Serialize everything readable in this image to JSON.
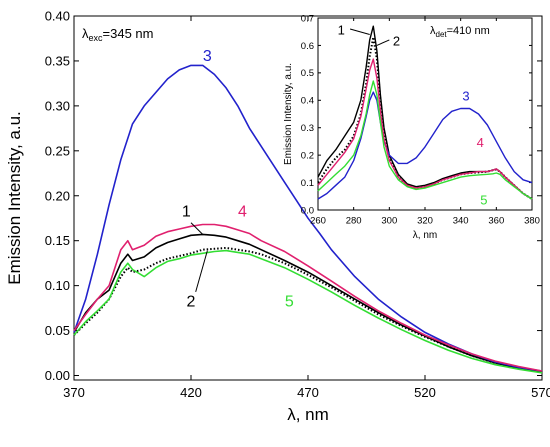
{
  "chart_data": [
    {
      "type": "line",
      "role": "main",
      "annotation": {
        "symbol": "λ",
        "sub": "exc",
        "value": "=345 nm"
      },
      "xlabel": "λ, nm",
      "ylabel": "Emission Intensity, a.u.",
      "xlim": [
        370,
        570
      ],
      "ylim": [
        -0.005,
        0.4
      ],
      "x_ticks": [
        370,
        420,
        470,
        520,
        570
      ],
      "y_ticks": [
        0.0,
        0.05,
        0.1,
        0.15,
        0.2,
        0.25,
        0.3,
        0.35,
        0.4
      ],
      "grid": false,
      "series": [
        {
          "name": "1",
          "color": "#000000",
          "style": "solid",
          "x": [
            370,
            375,
            380,
            385,
            390,
            393,
            395,
            400,
            405,
            410,
            415,
            420,
            425,
            430,
            435,
            440,
            445,
            450,
            460,
            470,
            480,
            490,
            500,
            510,
            520,
            530,
            540,
            550,
            560,
            570
          ],
          "y": [
            0.048,
            0.07,
            0.085,
            0.095,
            0.125,
            0.135,
            0.128,
            0.132,
            0.142,
            0.148,
            0.152,
            0.156,
            0.157,
            0.156,
            0.154,
            0.15,
            0.146,
            0.14,
            0.128,
            0.115,
            0.1,
            0.085,
            0.07,
            0.056,
            0.044,
            0.032,
            0.022,
            0.014,
            0.008,
            0.004
          ]
        },
        {
          "name": "2",
          "color": "#000000",
          "style": "dotted",
          "x": [
            370,
            375,
            380,
            385,
            390,
            393,
            395,
            400,
            405,
            410,
            415,
            420,
            425,
            430,
            435,
            440,
            445,
            450,
            460,
            470,
            480,
            490,
            500,
            510,
            520,
            530,
            540,
            550,
            560,
            570
          ],
          "y": [
            0.045,
            0.058,
            0.07,
            0.085,
            0.11,
            0.12,
            0.115,
            0.118,
            0.125,
            0.13,
            0.133,
            0.136,
            0.14,
            0.141,
            0.142,
            0.14,
            0.138,
            0.135,
            0.125,
            0.112,
            0.098,
            0.083,
            0.068,
            0.055,
            0.043,
            0.032,
            0.022,
            0.014,
            0.008,
            0.004
          ]
        },
        {
          "name": "3",
          "color": "#2222cc",
          "style": "solid",
          "x": [
            370,
            375,
            380,
            385,
            390,
            395,
            400,
            405,
            410,
            415,
            420,
            425,
            430,
            435,
            440,
            445,
            450,
            455,
            460,
            465,
            470,
            475,
            480,
            490,
            500,
            510,
            520,
            530,
            540,
            550,
            560,
            570
          ],
          "y": [
            0.048,
            0.085,
            0.135,
            0.19,
            0.24,
            0.28,
            0.3,
            0.315,
            0.33,
            0.34,
            0.345,
            0.345,
            0.335,
            0.32,
            0.3,
            0.275,
            0.255,
            0.235,
            0.215,
            0.195,
            0.175,
            0.158,
            0.14,
            0.11,
            0.085,
            0.065,
            0.048,
            0.035,
            0.024,
            0.015,
            0.009,
            0.005
          ]
        },
        {
          "name": "4",
          "color": "#e0206e",
          "style": "solid",
          "x": [
            370,
            375,
            380,
            385,
            390,
            393,
            395,
            400,
            405,
            410,
            415,
            420,
            425,
            430,
            435,
            440,
            445,
            450,
            460,
            470,
            480,
            490,
            500,
            510,
            520,
            530,
            540,
            550,
            560,
            570
          ],
          "y": [
            0.05,
            0.068,
            0.085,
            0.1,
            0.14,
            0.15,
            0.14,
            0.145,
            0.155,
            0.16,
            0.163,
            0.166,
            0.168,
            0.168,
            0.166,
            0.162,
            0.158,
            0.15,
            0.138,
            0.122,
            0.105,
            0.088,
            0.072,
            0.058,
            0.045,
            0.034,
            0.024,
            0.016,
            0.01,
            0.005
          ]
        },
        {
          "name": "5",
          "color": "#33dd33",
          "style": "solid",
          "x": [
            370,
            375,
            380,
            385,
            390,
            393,
            395,
            400,
            405,
            410,
            415,
            420,
            425,
            430,
            435,
            440,
            445,
            450,
            460,
            470,
            480,
            490,
            500,
            510,
            520,
            530,
            540,
            550,
            560,
            570
          ],
          "y": [
            0.045,
            0.06,
            0.072,
            0.085,
            0.115,
            0.125,
            0.118,
            0.11,
            0.12,
            0.127,
            0.13,
            0.134,
            0.136,
            0.138,
            0.139,
            0.137,
            0.135,
            0.13,
            0.12,
            0.107,
            0.093,
            0.078,
            0.064,
            0.051,
            0.039,
            0.028,
            0.019,
            0.012,
            0.007,
            0.003
          ]
        }
      ],
      "curve_labels": [
        {
          "text": "1",
          "x": 418,
          "y": 0.177,
          "color": "#000000"
        },
        {
          "text": "2",
          "x": 420,
          "y": 0.077,
          "color": "#000000"
        },
        {
          "text": "3",
          "x": 427,
          "y": 0.35,
          "color": "#2222cc"
        },
        {
          "text": "4",
          "x": 442,
          "y": 0.177,
          "color": "#e0206e"
        },
        {
          "text": "5",
          "x": 462,
          "y": 0.077,
          "color": "#33dd33"
        }
      ]
    },
    {
      "type": "line",
      "role": "inset",
      "annotation": {
        "symbol": "λ",
        "sub": "det",
        "value": "=410 nm"
      },
      "xlabel": "λ, nm",
      "ylabel": "Emission Intensity, a.u.",
      "xlim": [
        260,
        380
      ],
      "ylim": [
        0.0,
        0.7
      ],
      "x_ticks": [
        260,
        280,
        300,
        320,
        340,
        360,
        380
      ],
      "y_ticks": [
        0.0,
        0.1,
        0.2,
        0.3,
        0.4,
        0.5,
        0.6,
        0.7
      ],
      "grid": false,
      "series": [
        {
          "name": "1",
          "color": "#000000",
          "style": "solid",
          "x": [
            260,
            265,
            270,
            275,
            280,
            284,
            287,
            289,
            291,
            293,
            295,
            297,
            300,
            305,
            310,
            315,
            320,
            325,
            330,
            335,
            340,
            345,
            350,
            355,
            358,
            360,
            362,
            365,
            370,
            375,
            380
          ],
          "y": [
            0.12,
            0.18,
            0.22,
            0.27,
            0.32,
            0.4,
            0.52,
            0.62,
            0.67,
            0.58,
            0.42,
            0.3,
            0.2,
            0.13,
            0.095,
            0.085,
            0.09,
            0.1,
            0.115,
            0.125,
            0.135,
            0.14,
            0.14,
            0.14,
            0.145,
            0.15,
            0.14,
            0.12,
            0.09,
            0.06,
            0.04
          ]
        },
        {
          "name": "2",
          "color": "#000000",
          "style": "dotted",
          "x": [
            260,
            265,
            270,
            275,
            280,
            284,
            287,
            289,
            291,
            293,
            295,
            297,
            300,
            305,
            310,
            315,
            320,
            325,
            330,
            335,
            340,
            345,
            350,
            355,
            358,
            360,
            362,
            365,
            370,
            375,
            380
          ],
          "y": [
            0.1,
            0.15,
            0.19,
            0.22,
            0.27,
            0.35,
            0.46,
            0.56,
            0.63,
            0.55,
            0.4,
            0.28,
            0.19,
            0.12,
            0.09,
            0.08,
            0.085,
            0.095,
            0.11,
            0.12,
            0.13,
            0.135,
            0.137,
            0.14,
            0.145,
            0.148,
            0.14,
            0.12,
            0.09,
            0.06,
            0.04
          ]
        },
        {
          "name": "3",
          "color": "#2222cc",
          "style": "solid",
          "x": [
            260,
            265,
            270,
            275,
            280,
            284,
            287,
            289,
            291,
            293,
            295,
            297,
            300,
            305,
            310,
            315,
            320,
            325,
            330,
            335,
            340,
            345,
            350,
            355,
            360,
            365,
            370,
            375,
            380
          ],
          "y": [
            0.04,
            0.06,
            0.09,
            0.12,
            0.18,
            0.26,
            0.34,
            0.4,
            0.43,
            0.4,
            0.32,
            0.25,
            0.2,
            0.17,
            0.17,
            0.19,
            0.23,
            0.28,
            0.33,
            0.36,
            0.37,
            0.37,
            0.35,
            0.31,
            0.25,
            0.19,
            0.14,
            0.11,
            0.1
          ]
        },
        {
          "name": "4",
          "color": "#e0206e",
          "style": "solid",
          "x": [
            260,
            265,
            270,
            275,
            280,
            284,
            287,
            289,
            291,
            293,
            295,
            297,
            300,
            305,
            310,
            315,
            320,
            325,
            330,
            335,
            340,
            345,
            350,
            355,
            358,
            360,
            362,
            365,
            370,
            375,
            380
          ],
          "y": [
            0.09,
            0.13,
            0.17,
            0.21,
            0.26,
            0.34,
            0.44,
            0.51,
            0.55,
            0.48,
            0.36,
            0.26,
            0.18,
            0.12,
            0.09,
            0.08,
            0.085,
            0.095,
            0.11,
            0.12,
            0.13,
            0.135,
            0.14,
            0.14,
            0.145,
            0.15,
            0.14,
            0.12,
            0.09,
            0.06,
            0.04
          ]
        },
        {
          "name": "5",
          "color": "#33dd33",
          "style": "solid",
          "x": [
            260,
            265,
            270,
            275,
            280,
            284,
            287,
            289,
            291,
            293,
            295,
            297,
            300,
            305,
            310,
            315,
            320,
            325,
            330,
            335,
            340,
            345,
            350,
            355,
            358,
            360,
            362,
            365,
            370,
            375,
            380
          ],
          "y": [
            0.07,
            0.1,
            0.13,
            0.16,
            0.2,
            0.27,
            0.35,
            0.42,
            0.47,
            0.42,
            0.32,
            0.23,
            0.16,
            0.11,
            0.085,
            0.075,
            0.08,
            0.09,
            0.1,
            0.11,
            0.12,
            0.125,
            0.128,
            0.13,
            0.132,
            0.135,
            0.13,
            0.11,
            0.085,
            0.06,
            0.04
          ]
        }
      ],
      "curve_labels": [
        {
          "text": "1",
          "x": 273,
          "y": 0.64,
          "color": "#000000"
        },
        {
          "text": "2",
          "x": 304,
          "y": 0.6,
          "color": "#000000"
        },
        {
          "text": "3",
          "x": 343,
          "y": 0.4,
          "color": "#2222cc"
        },
        {
          "text": "4",
          "x": 351,
          "y": 0.23,
          "color": "#e0206e"
        },
        {
          "text": "5",
          "x": 353,
          "y": 0.02,
          "color": "#33dd33"
        }
      ]
    }
  ]
}
